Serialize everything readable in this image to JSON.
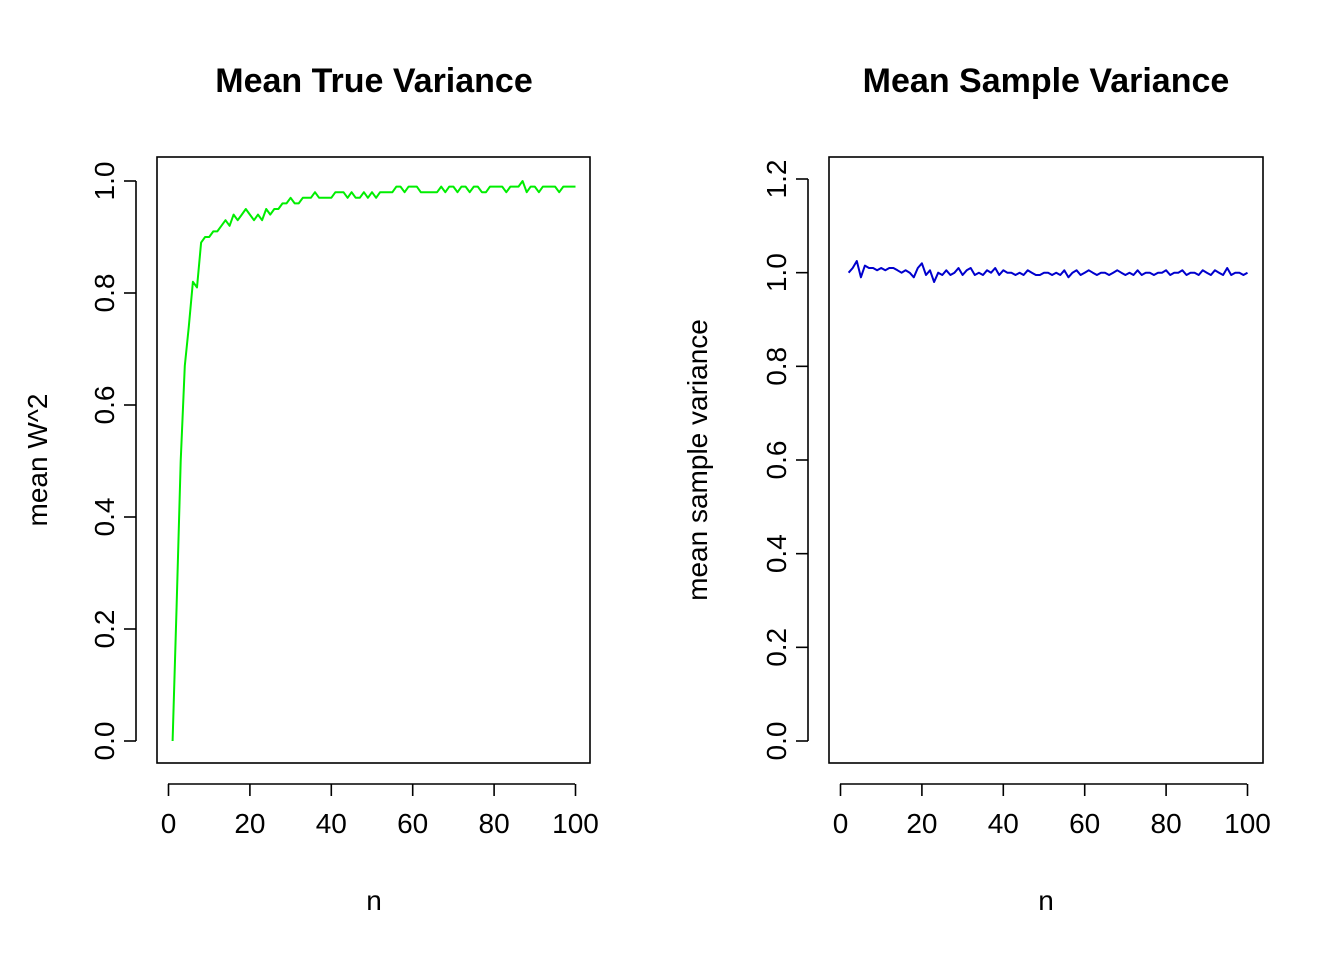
{
  "chart_data": [
    {
      "type": "line",
      "title": "Mean True Variance",
      "xlabel": "n",
      "ylabel": "mean W^2",
      "xlim": [
        1,
        100
      ],
      "ylim": [
        0,
        1
      ],
      "xticks": [
        0,
        20,
        40,
        60,
        80,
        100
      ],
      "xtick_labels": [
        "0",
        "20",
        "40",
        "60",
        "80",
        "100"
      ],
      "yticks": [
        0,
        0.2,
        0.4,
        0.6,
        0.8,
        1.0
      ],
      "ytick_labels": [
        "0.0",
        "0.2",
        "0.4",
        "0.6",
        "0.8",
        "1.0"
      ],
      "grid": false,
      "color": "#00ee00",
      "series": [
        {
          "x": [
            1,
            2,
            3,
            4,
            5,
            6,
            7,
            8,
            9,
            10,
            11,
            12,
            13,
            14,
            15,
            16,
            17,
            18,
            19,
            20,
            21,
            22,
            23,
            24,
            25,
            26,
            27,
            28,
            29,
            30,
            31,
            32,
            33,
            34,
            35,
            36,
            37,
            38,
            39,
            40,
            41,
            42,
            43,
            44,
            45,
            46,
            47,
            48,
            49,
            50,
            51,
            52,
            53,
            54,
            55,
            56,
            57,
            58,
            59,
            60,
            61,
            62,
            63,
            64,
            65,
            66,
            67,
            68,
            69,
            70,
            71,
            72,
            73,
            74,
            75,
            76,
            77,
            78,
            79,
            80,
            81,
            82,
            83,
            84,
            85,
            86,
            87,
            88,
            89,
            90,
            91,
            92,
            93,
            94,
            95,
            96,
            97,
            98,
            99,
            100
          ],
          "values": [
            0.0,
            0.24,
            0.5,
            0.67,
            0.74,
            0.82,
            0.81,
            0.89,
            0.9,
            0.9,
            0.91,
            0.91,
            0.92,
            0.93,
            0.92,
            0.94,
            0.93,
            0.94,
            0.95,
            0.94,
            0.93,
            0.94,
            0.93,
            0.95,
            0.94,
            0.95,
            0.95,
            0.96,
            0.96,
            0.97,
            0.96,
            0.96,
            0.97,
            0.97,
            0.97,
            0.98,
            0.97,
            0.97,
            0.97,
            0.97,
            0.98,
            0.98,
            0.98,
            0.97,
            0.98,
            0.97,
            0.97,
            0.98,
            0.97,
            0.98,
            0.97,
            0.98,
            0.98,
            0.98,
            0.98,
            0.99,
            0.99,
            0.98,
            0.99,
            0.99,
            0.99,
            0.98,
            0.98,
            0.98,
            0.98,
            0.98,
            0.99,
            0.98,
            0.99,
            0.99,
            0.98,
            0.99,
            0.99,
            0.98,
            0.99,
            0.99,
            0.98,
            0.98,
            0.99,
            0.99,
            0.99,
            0.99,
            0.98,
            0.99,
            0.99,
            0.99,
            1.0,
            0.98,
            0.99,
            0.99,
            0.98,
            0.99,
            0.99,
            0.99,
            0.99,
            0.98,
            0.99,
            0.99,
            0.99,
            0.99
          ]
        }
      ]
    },
    {
      "type": "line",
      "title": "Mean Sample Variance",
      "xlabel": "n",
      "ylabel": "mean sample variance",
      "xlim": [
        2,
        100
      ],
      "ylim": [
        0,
        1.25
      ],
      "xticks": [
        0,
        20,
        40,
        60,
        80,
        100
      ],
      "xtick_labels": [
        "0",
        "20",
        "40",
        "60",
        "80",
        "100"
      ],
      "yticks": [
        0,
        0.2,
        0.4,
        0.6,
        0.8,
        1.0,
        1.2
      ],
      "ytick_labels": [
        "0.0",
        "0.2",
        "0.4",
        "0.6",
        "0.8",
        "1.0",
        "1.2"
      ],
      "grid": false,
      "color": "#0000cd",
      "series": [
        {
          "x": [
            2,
            3,
            4,
            5,
            6,
            7,
            8,
            9,
            10,
            11,
            12,
            13,
            14,
            15,
            16,
            17,
            18,
            19,
            20,
            21,
            22,
            23,
            24,
            25,
            26,
            27,
            28,
            29,
            30,
            31,
            32,
            33,
            34,
            35,
            36,
            37,
            38,
            39,
            40,
            41,
            42,
            43,
            44,
            45,
            46,
            47,
            48,
            49,
            50,
            51,
            52,
            53,
            54,
            55,
            56,
            57,
            58,
            59,
            60,
            61,
            62,
            63,
            64,
            65,
            66,
            67,
            68,
            69,
            70,
            71,
            72,
            73,
            74,
            75,
            76,
            77,
            78,
            79,
            80,
            81,
            82,
            83,
            84,
            85,
            86,
            87,
            88,
            89,
            90,
            91,
            92,
            93,
            94,
            95,
            96,
            97,
            98,
            99,
            100
          ],
          "values": [
            1.0,
            1.01,
            1.025,
            0.99,
            1.015,
            1.01,
            1.01,
            1.005,
            1.01,
            1.005,
            1.01,
            1.01,
            1.005,
            1.0,
            1.005,
            1.0,
            0.99,
            1.01,
            1.02,
            0.995,
            1.005,
            0.98,
            1.0,
            0.995,
            1.005,
            0.995,
            1.0,
            1.01,
            0.995,
            1.005,
            1.01,
            0.995,
            1.0,
            0.995,
            1.005,
            1.0,
            1.01,
            0.995,
            1.005,
            1.0,
            1.0,
            0.995,
            1.0,
            0.995,
            1.005,
            1.0,
            0.995,
            0.995,
            1.0,
            1.0,
            0.995,
            1.0,
            0.995,
            1.005,
            0.99,
            1.0,
            1.005,
            0.995,
            1.0,
            1.005,
            1.0,
            0.995,
            1.0,
            1.0,
            0.995,
            1.0,
            1.005,
            1.0,
            0.995,
            1.0,
            0.995,
            1.005,
            0.995,
            1.0,
            1.0,
            0.995,
            1.0,
            1.0,
            1.005,
            0.995,
            1.0,
            1.0,
            1.005,
            0.995,
            1.0,
            1.0,
            0.995,
            1.005,
            1.0,
            0.995,
            1.005,
            1.0,
            0.995,
            1.01,
            0.995,
            1.0,
            1.0,
            0.995,
            1.0
          ]
        }
      ]
    }
  ]
}
